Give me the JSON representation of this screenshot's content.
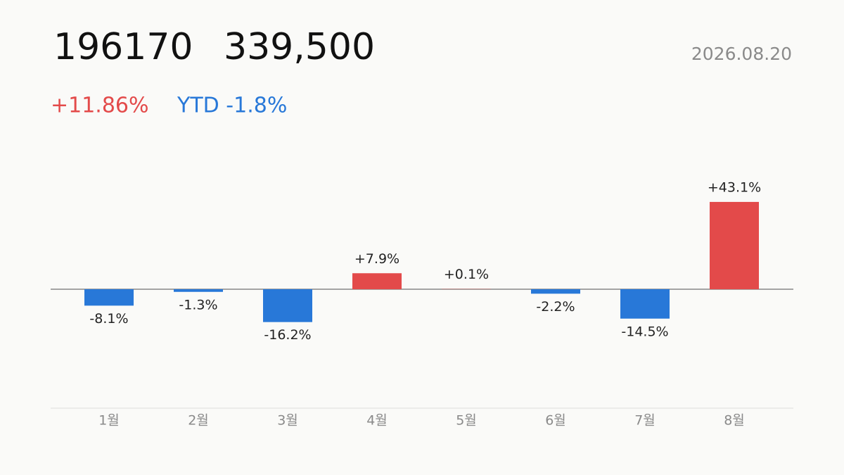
{
  "chart_data": {
    "type": "bar",
    "code": "196170",
    "price": "339,500",
    "date": "2026.08.20",
    "change": "+11.86%",
    "ytd": "YTD -1.8%",
    "categories": [
      "1월",
      "2월",
      "3월",
      "4월",
      "5월",
      "6월",
      "7월",
      "8월"
    ],
    "values": [
      -8.1,
      -1.3,
      -16.2,
      7.9,
      0.1,
      -2.2,
      -14.5,
      43.1
    ],
    "value_labels": [
      "-8.1%",
      "-1.3%",
      "-16.2%",
      "+7.9%",
      "+0.1%",
      "-2.2%",
      "-14.5%",
      "+43.1%"
    ],
    "colors": {
      "positive": "#e34a4a",
      "negative": "#2878d8"
    },
    "ylim": [
      -58.7,
      73.3
    ]
  }
}
